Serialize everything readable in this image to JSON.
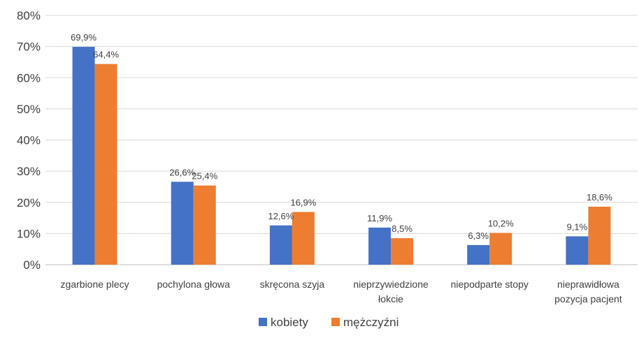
{
  "chart_data": {
    "type": "bar",
    "title": "",
    "xlabel": "",
    "ylabel": "",
    "ylim": [
      0,
      80
    ],
    "ytick_step": 10,
    "ytick_labels": [
      "0%",
      "10%",
      "20%",
      "30%",
      "40%",
      "50%",
      "60%",
      "70%",
      "80%"
    ],
    "grid": "horizontal",
    "legend_position": "bottom",
    "categories": [
      [
        "zgarbione plecy"
      ],
      [
        "pochylona głowa"
      ],
      [
        "skręcona szyja"
      ],
      [
        "nieprzywiedzione",
        "łokcie"
      ],
      [
        "niepodparte stopy"
      ],
      [
        "nieprawidłowa",
        "pozycja pacjent"
      ]
    ],
    "series": [
      {
        "name": "kobiety",
        "color": "#4472c4",
        "values": [
          69.9,
          26.6,
          12.6,
          11.9,
          6.3,
          9.1
        ],
        "labels": [
          "69,9%",
          "26,6%",
          "12,6%",
          "11,9%",
          "6,3%",
          "9,1%"
        ]
      },
      {
        "name": "mężczyźni",
        "color": "#ed7d31",
        "values": [
          64.4,
          25.4,
          16.9,
          8.5,
          10.2,
          18.6
        ],
        "labels": [
          "64,4%",
          "25,4%",
          "16,9%",
          "8,5%",
          "10,2%",
          "18,6%"
        ]
      }
    ]
  }
}
